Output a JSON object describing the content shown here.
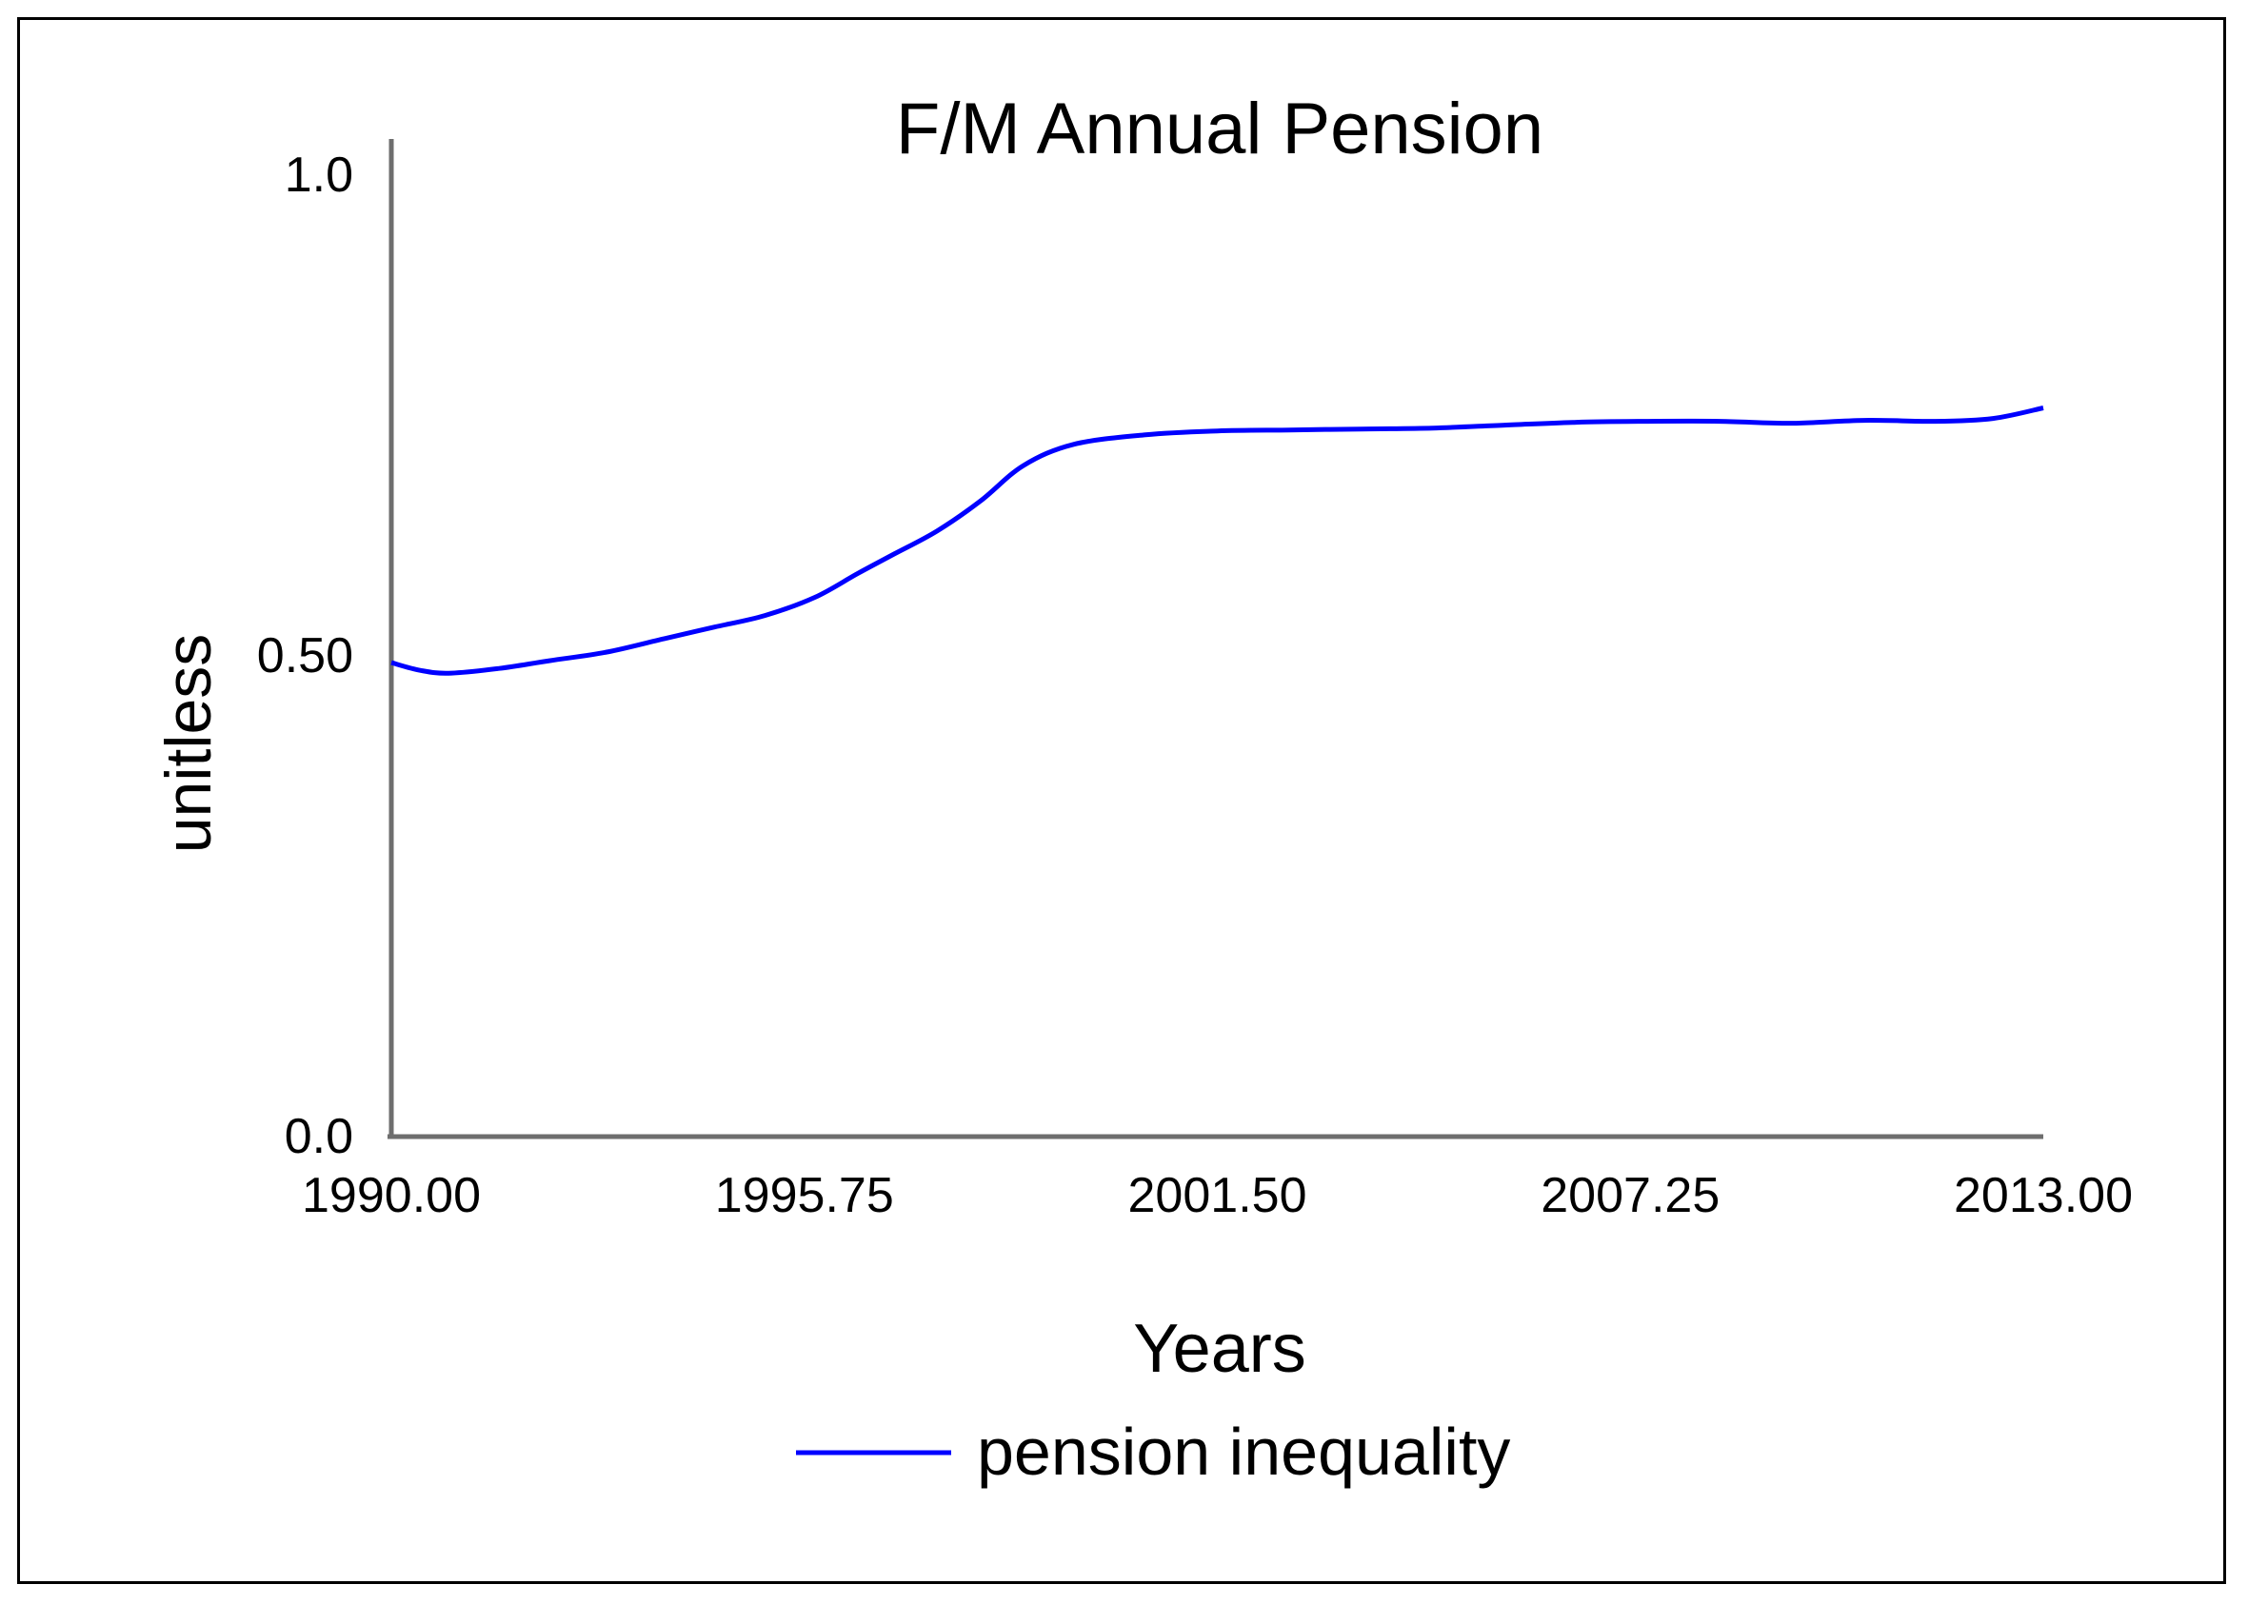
{
  "chart_data": {
    "type": "line",
    "title": "F/M Annual Pension",
    "xlabel": "Years",
    "ylabel": "unitless",
    "xlim": [
      1990.0,
      2013.0
    ],
    "ylim": [
      0.0,
      1.0
    ],
    "x_ticks": [
      "1990.00",
      "1995.75",
      "2001.50",
      "2007.25",
      "2013.00"
    ],
    "y_ticks": [
      "0.0",
      "0.50",
      "1.0"
    ],
    "legend_position": "bottom-center",
    "grid": false,
    "series": [
      {
        "name": "pension inequality",
        "color": "#0000ff",
        "x": [
          1990.0,
          1990.4,
          1990.8,
          1991.5,
          1992.2,
          1993.0,
          1993.8,
          1994.5,
          1995.2,
          1995.9,
          1996.5,
          1997.0,
          1997.6,
          1998.2,
          1998.8,
          1999.5,
          2000.5,
          2001.5,
          2002.5,
          2003.5,
          2004.5,
          2005.5,
          2006.5,
          2007.5,
          2008.5,
          2009.5,
          2010.5,
          2011.5,
          2012.3,
          2013.0
        ],
        "values": [
          0.49,
          0.482,
          0.479,
          0.484,
          0.492,
          0.501,
          0.515,
          0.527,
          0.539,
          0.558,
          0.583,
          0.603,
          0.627,
          0.658,
          0.695,
          0.717,
          0.727,
          0.731,
          0.732,
          0.733,
          0.734,
          0.737,
          0.74,
          0.741,
          0.741,
          0.739,
          0.742,
          0.741,
          0.744,
          0.755
        ]
      }
    ]
  }
}
